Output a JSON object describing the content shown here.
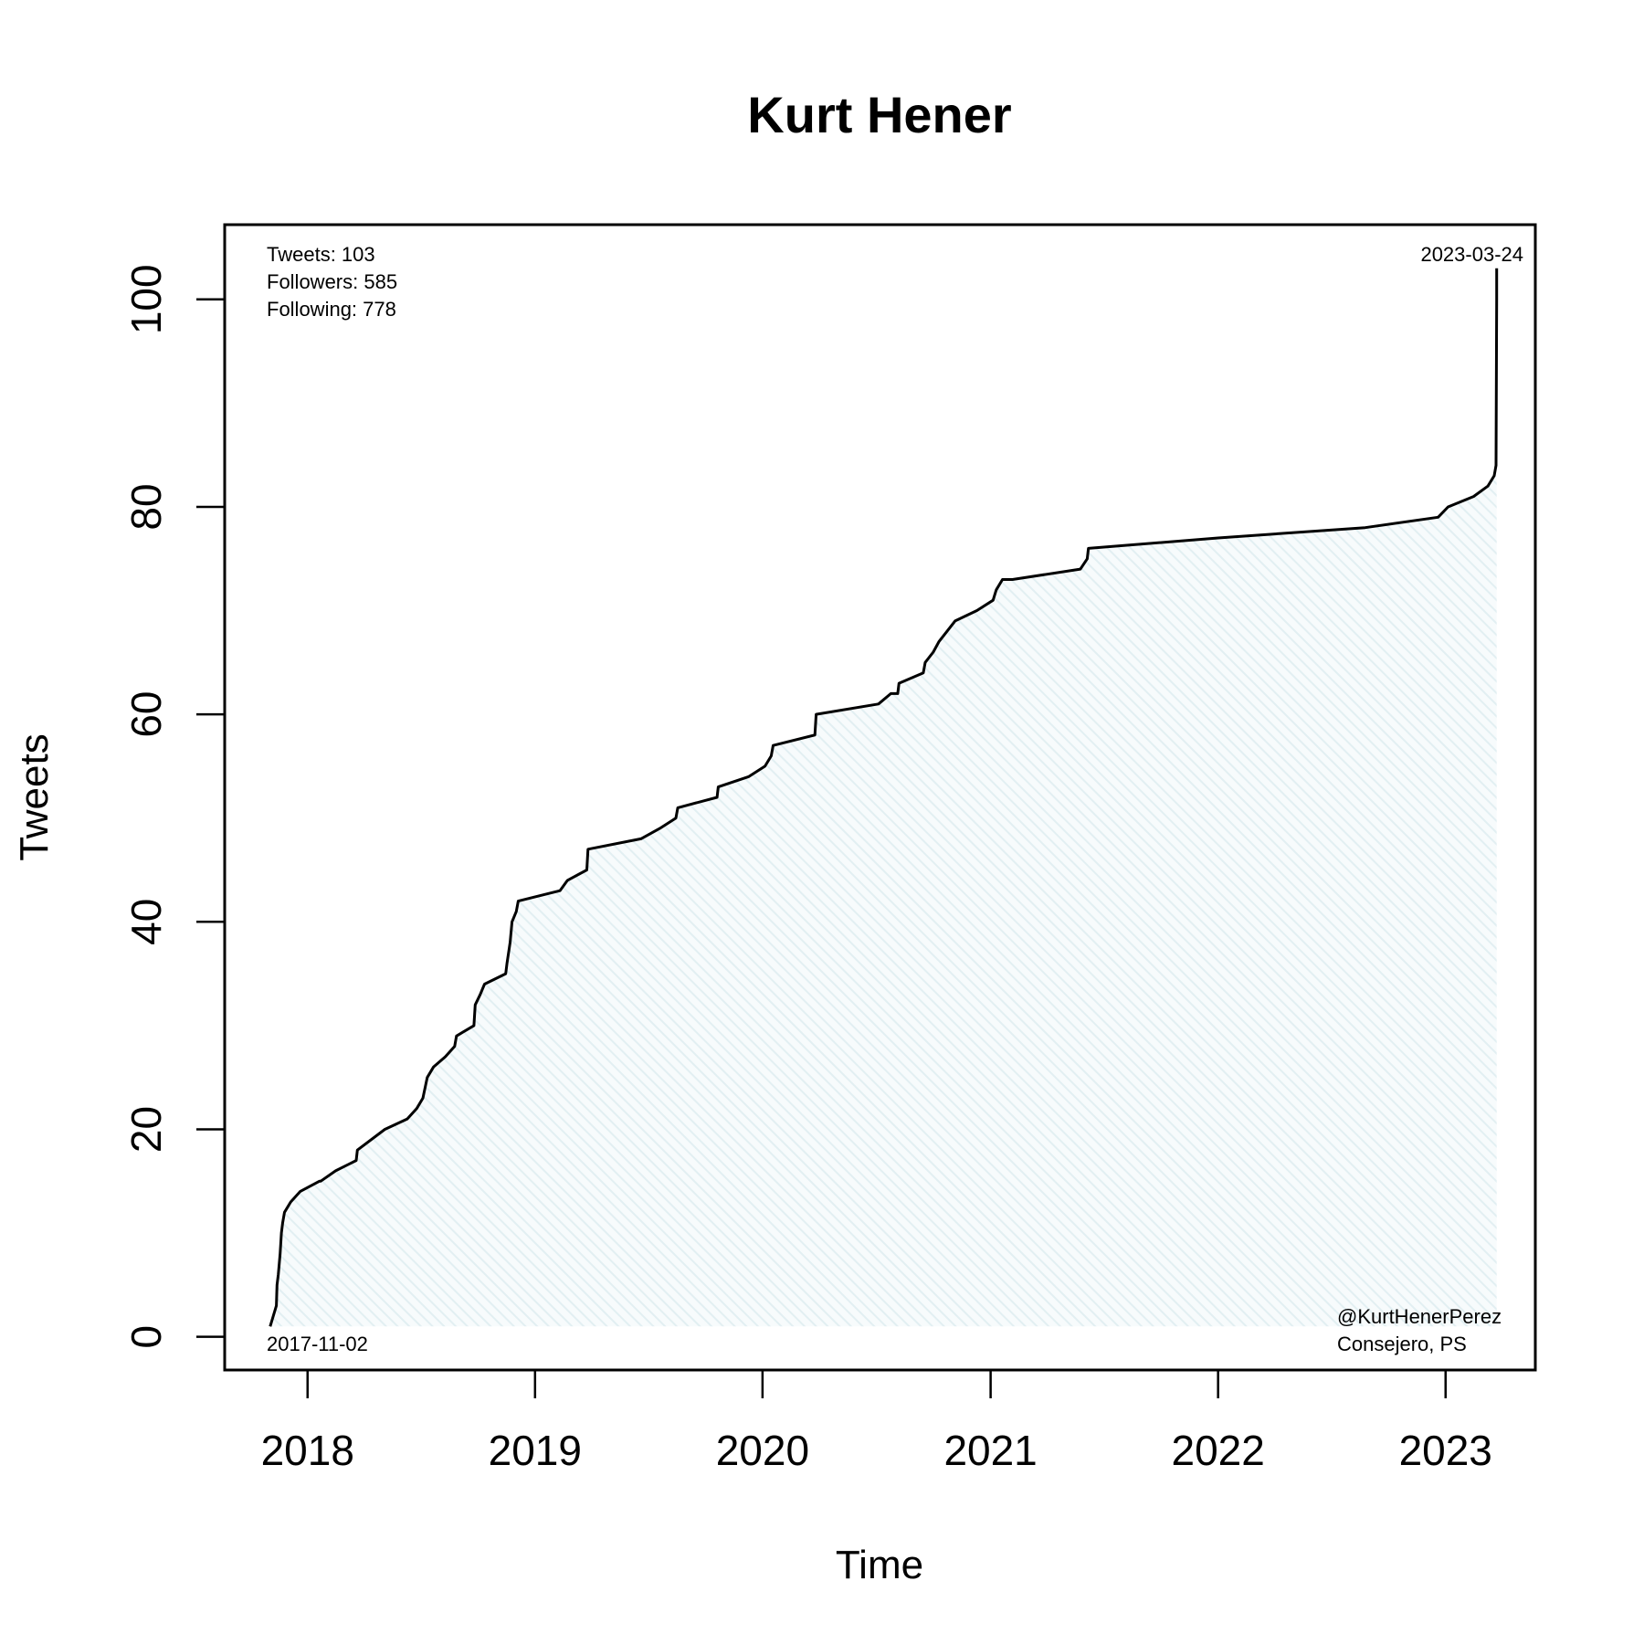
{
  "chart_data": {
    "type": "area",
    "title": "Kurt Hener",
    "xlabel": "Time",
    "ylabel": "Tweets",
    "xlim": [
      "2017-08-21",
      "2023-05-25"
    ],
    "ylim": [
      -3.2,
      107.2
    ],
    "x_ticks": [
      {
        "date": "2018-01-01",
        "label": "2018"
      },
      {
        "date": "2019-01-01",
        "label": "2019"
      },
      {
        "date": "2020-01-01",
        "label": "2020"
      },
      {
        "date": "2021-01-01",
        "label": "2021"
      },
      {
        "date": "2022-01-01",
        "label": "2022"
      },
      {
        "date": "2023-01-01",
        "label": "2023"
      }
    ],
    "y_ticks": [
      0,
      20,
      40,
      60,
      80,
      100
    ],
    "grid": false,
    "legend": "none",
    "fill_color": "#e8f3f5",
    "line_color": "#000000",
    "series": [
      {
        "x": [
          "2017-11-02",
          "2017-11-12",
          "2017-11-13",
          "2017-11-15",
          "2017-11-18",
          "2017-11-20",
          "2017-11-22",
          "2017-11-25",
          "2017-12-05",
          "2017-12-20",
          "2018-01-20",
          "2018-01-22",
          "2018-02-15",
          "2018-03-20",
          "2018-03-22",
          "2018-05-05",
          "2018-06-10",
          "2018-06-25",
          "2018-07-05",
          "2018-07-12",
          "2018-07-22",
          "2018-08-10",
          "2018-08-25",
          "2018-08-28",
          "2018-09-25",
          "2018-09-27",
          "2018-10-05",
          "2018-10-12",
          "2018-11-15",
          "2018-11-17",
          "2018-11-22",
          "2018-11-25",
          "2018-12-02",
          "2018-12-05",
          "2019-02-10",
          "2019-02-22",
          "2019-03-25",
          "2019-03-27",
          "2019-06-20",
          "2019-07-20",
          "2019-08-15",
          "2019-08-18",
          "2019-10-20",
          "2019-10-22",
          "2019-12-10",
          "2020-01-05",
          "2020-01-15",
          "2020-01-18",
          "2020-03-25",
          "2020-03-27",
          "2020-07-05",
          "2020-07-25",
          "2020-08-05",
          "2020-08-07",
          "2020-09-15",
          "2020-09-18",
          "2020-10-01",
          "2020-10-10",
          "2020-11-05",
          "2020-12-10",
          "2021-01-05",
          "2021-01-10",
          "2021-01-20",
          "2021-02-05",
          "2021-05-25",
          "2021-06-05",
          "2021-06-07",
          "2022-01-01",
          "2022-08-25",
          "2022-12-20",
          "2023-01-05",
          "2023-02-15",
          "2023-03-10",
          "2023-03-20",
          "2023-03-23",
          "2023-03-24",
          "2023-03-24"
        ],
        "y": [
          1,
          3,
          5,
          6,
          8,
          10,
          11,
          12,
          13,
          14,
          15,
          15,
          16,
          17,
          18,
          20,
          21,
          22,
          23,
          25,
          26,
          27,
          28,
          29,
          30,
          32,
          33,
          34,
          35,
          36,
          38,
          40,
          41,
          42,
          43,
          44,
          45,
          47,
          48,
          49,
          50,
          51,
          52,
          53,
          54,
          55,
          56,
          57,
          58,
          60,
          61,
          62,
          62,
          63,
          64,
          65,
          66,
          67,
          69,
          70,
          71,
          72,
          73,
          73,
          74,
          75,
          76,
          77,
          78,
          79,
          80,
          81,
          82,
          83,
          84,
          100,
          103
        ]
      }
    ],
    "annotations": {
      "stats": [
        "Tweets: 103",
        "Followers: 585",
        "Following: 778"
      ],
      "start_date": "2017-11-02",
      "end_date": "2023-03-24",
      "handle": "@KurtHenerPerez",
      "role": "Consejero, PS"
    }
  }
}
